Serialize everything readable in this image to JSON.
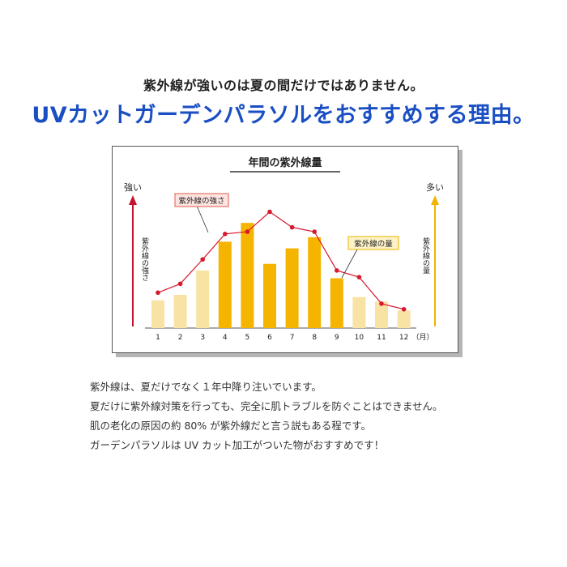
{
  "header": {
    "subtitle": "紫外線が強いのは夏の間だけではありません。",
    "title": "UVカットガーデンパラソルをおすすめする理由。"
  },
  "chart_data": {
    "type": "bar",
    "title": "年間の紫外線量",
    "categories": [
      "1",
      "2",
      "3",
      "4",
      "5",
      "6",
      "7",
      "8",
      "9",
      "10",
      "11",
      "12"
    ],
    "x_unit": "（月）",
    "series": [
      {
        "name": "紫外線の量",
        "type": "bar",
        "values": [
          2.5,
          3.0,
          5.2,
          7.8,
          9.5,
          5.8,
          7.2,
          8.2,
          4.5,
          2.8,
          2.4,
          1.6
        ]
      },
      {
        "name": "紫外線の強さ",
        "type": "line",
        "values": [
          3.2,
          4.0,
          6.2,
          8.5,
          8.7,
          10.5,
          9.1,
          8.7,
          5.2,
          4.6,
          2.2,
          1.7
        ]
      }
    ],
    "left_axis": {
      "top_label": "強い",
      "side_label": "紫外線の強さ"
    },
    "right_axis": {
      "top_label": "多い",
      "side_label": "紫外線の量"
    },
    "ylim": [
      0,
      12
    ],
    "colors": {
      "bar_light": "#f9e3a4",
      "bar_dark": "#f5b400",
      "line": "#d7192d",
      "left_arrow": "#c8102e",
      "right_arrow": "#f0b400",
      "line_label_bg": "#fde4e0",
      "line_label_border": "#e2594c",
      "bar_label_bg": "#fdf2c6",
      "bar_label_border": "#e6b500"
    }
  },
  "body": {
    "lines": [
      "紫外線は、夏だけでなく１年中降り注いでいます。",
      "夏だけに紫外線対策を行っても、完全に肌トラブルを防ぐことはできません。",
      "肌の老化の原因の約 80% が紫外線だと言う説もある程です。",
      "ガーデンパラソルは UV カット加工がついた物がおすすめです！"
    ]
  }
}
